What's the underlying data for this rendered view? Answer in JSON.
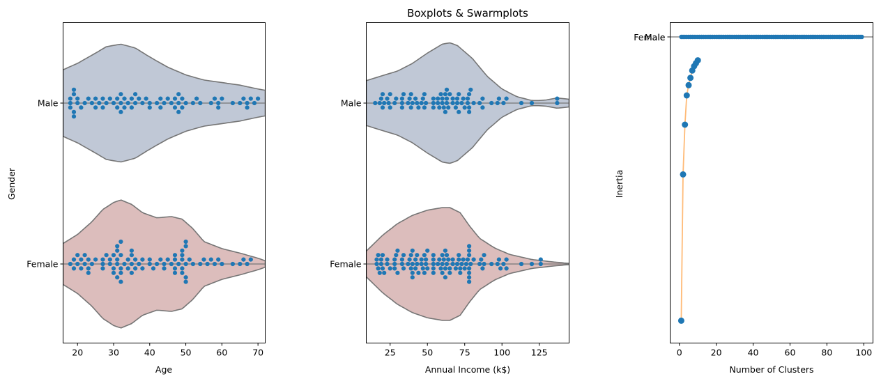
{
  "figure": {
    "title": "Boxplots & Swarmplots"
  },
  "colors": {
    "male_violin": "#c0c8d6",
    "female_violin": "#dcbdbc",
    "violin_edge": "#757575",
    "point": "#1f77b4",
    "elbow_line": "#ffbb78"
  },
  "chart_data": [
    {
      "type": "violin+swarm",
      "title": "",
      "xlabel": "Age",
      "ylabel": "Gender",
      "categories": [
        "Male",
        "Female"
      ],
      "xlim": [
        16,
        72
      ],
      "xticks": [
        20,
        30,
        40,
        50,
        60,
        70
      ],
      "violin_extent": {
        "Male": [
          16,
          72
        ],
        "Female": [
          16,
          72
        ]
      },
      "violin_density": {
        "Male": [
          [
            16,
            0.52
          ],
          [
            20,
            0.62
          ],
          [
            25,
            0.78
          ],
          [
            28,
            0.88
          ],
          [
            32,
            0.92
          ],
          [
            36,
            0.86
          ],
          [
            40,
            0.72
          ],
          [
            45,
            0.56
          ],
          [
            50,
            0.44
          ],
          [
            55,
            0.36
          ],
          [
            60,
            0.32
          ],
          [
            65,
            0.28
          ],
          [
            70,
            0.22
          ],
          [
            72,
            0.2
          ]
        ],
        "Female": [
          [
            16,
            0.32
          ],
          [
            20,
            0.46
          ],
          [
            24,
            0.66
          ],
          [
            27,
            0.85
          ],
          [
            30,
            0.96
          ],
          [
            32,
            1.0
          ],
          [
            35,
            0.93
          ],
          [
            38,
            0.8
          ],
          [
            42,
            0.72
          ],
          [
            46,
            0.74
          ],
          [
            49,
            0.7
          ],
          [
            52,
            0.55
          ],
          [
            55,
            0.35
          ],
          [
            60,
            0.24
          ],
          [
            65,
            0.17
          ],
          [
            70,
            0.09
          ],
          [
            72,
            0.05
          ]
        ]
      },
      "swarm": {
        "Male": [
          18,
          18,
          18,
          19,
          19,
          19,
          19,
          20,
          20,
          21,
          22,
          23,
          24,
          25,
          25,
          26,
          27,
          27,
          28,
          29,
          30,
          31,
          31,
          32,
          32,
          32,
          33,
          33,
          34,
          35,
          35,
          36,
          36,
          37,
          38,
          39,
          40,
          40,
          42,
          43,
          43,
          44,
          45,
          46,
          47,
          47,
          48,
          48,
          48,
          49,
          49,
          50,
          52,
          53,
          54,
          57,
          58,
          59,
          59,
          60,
          63,
          65,
          66,
          67,
          67,
          68,
          69,
          70
        ],
        "Female": [
          18,
          19,
          19,
          20,
          20,
          21,
          21,
          22,
          22,
          23,
          23,
          23,
          24,
          25,
          27,
          27,
          27,
          28,
          29,
          29,
          30,
          30,
          30,
          31,
          31,
          31,
          31,
          31,
          32,
          32,
          32,
          32,
          32,
          33,
          34,
          34,
          35,
          35,
          35,
          35,
          36,
          36,
          37,
          38,
          38,
          40,
          40,
          41,
          42,
          43,
          44,
          44,
          45,
          46,
          47,
          47,
          47,
          47,
          48,
          49,
          49,
          49,
          49,
          49,
          50,
          50,
          50,
          50,
          50,
          51,
          52,
          54,
          55,
          56,
          57,
          58,
          59,
          60,
          63,
          65,
          66,
          67,
          68
        ]
      }
    },
    {
      "type": "violin+swarm",
      "title": "Boxplots & Swarmplots",
      "xlabel": "Annual Income (k$)",
      "ylabel": "",
      "categories": [
        "Male",
        "Female"
      ],
      "xlim": [
        9,
        145
      ],
      "xticks": [
        25,
        50,
        75,
        100,
        125
      ],
      "violin_extent": {
        "Male": [
          9,
          145
        ],
        "Female": [
          9,
          145
        ]
      },
      "violin_density": {
        "Male": [
          [
            9,
            0.35
          ],
          [
            20,
            0.43
          ],
          [
            30,
            0.5
          ],
          [
            40,
            0.62
          ],
          [
            50,
            0.78
          ],
          [
            60,
            0.92
          ],
          [
            65,
            0.94
          ],
          [
            70,
            0.9
          ],
          [
            80,
            0.7
          ],
          [
            90,
            0.42
          ],
          [
            100,
            0.22
          ],
          [
            110,
            0.1
          ],
          [
            120,
            0.04
          ],
          [
            125,
            0.04
          ],
          [
            130,
            0.05
          ],
          [
            137,
            0.08
          ],
          [
            145,
            0.06
          ]
        ],
        "Female": [
          [
            9,
            0.2
          ],
          [
            20,
            0.45
          ],
          [
            30,
            0.63
          ],
          [
            40,
            0.76
          ],
          [
            50,
            0.84
          ],
          [
            60,
            0.88
          ],
          [
            65,
            0.88
          ],
          [
            72,
            0.8
          ],
          [
            78,
            0.6
          ],
          [
            85,
            0.4
          ],
          [
            95,
            0.25
          ],
          [
            105,
            0.15
          ],
          [
            120,
            0.07
          ],
          [
            135,
            0.03
          ],
          [
            145,
            0.01
          ]
        ]
      },
      "swarm": {
        "Male": [
          15,
          18,
          19,
          20,
          20,
          21,
          23,
          24,
          25,
          25,
          28,
          29,
          33,
          33,
          33,
          34,
          37,
          38,
          39,
          39,
          40,
          42,
          43,
          44,
          46,
          47,
          48,
          48,
          49,
          54,
          54,
          54,
          57,
          57,
          58,
          59,
          60,
          60,
          61,
          62,
          62,
          63,
          63,
          63,
          64,
          65,
          67,
          67,
          69,
          70,
          70,
          71,
          71,
          73,
          74,
          75,
          77,
          77,
          78,
          78,
          78,
          79,
          81,
          85,
          87,
          87,
          93,
          97,
          98,
          101,
          103,
          113,
          120,
          137,
          137
        ],
        "Female": [
          16,
          16,
          17,
          17,
          18,
          19,
          19,
          20,
          20,
          21,
          23,
          23,
          25,
          28,
          28,
          28,
          29,
          30,
          30,
          33,
          33,
          34,
          34,
          37,
          38,
          39,
          39,
          40,
          40,
          40,
          40,
          42,
          42,
          43,
          43,
          44,
          46,
          46,
          47,
          48,
          48,
          49,
          49,
          50,
          50,
          54,
          54,
          54,
          54,
          54,
          57,
          58,
          59,
          60,
          60,
          60,
          61,
          62,
          62,
          62,
          63,
          63,
          64,
          65,
          65,
          67,
          67,
          69,
          70,
          71,
          71,
          72,
          72,
          73,
          74,
          75,
          76,
          77,
          78,
          78,
          78,
          78,
          78,
          78,
          78,
          79,
          81,
          85,
          86,
          87,
          88,
          88,
          93,
          97,
          98,
          99,
          101,
          103,
          103,
          113,
          120,
          126,
          126
        ]
      }
    },
    {
      "type": "line",
      "title": "",
      "xlabel": "Number of Clusters",
      "ylabel": "Inertia",
      "xlim": [
        -5,
        105
      ],
      "xticks": [
        0,
        20,
        40,
        60,
        80,
        100
      ],
      "categorical_yticks": [
        "Female",
        "Male"
      ],
      "series": [
        {
          "kind": "line-with-markers",
          "x": [
            1,
            2,
            3,
            4,
            5,
            6,
            7,
            8,
            9,
            10
          ],
          "y": [
            0.03,
            0.53,
            0.7,
            0.8,
            0.835,
            0.86,
            0.885,
            0.9,
            0.91,
            0.92
          ]
        },
        {
          "kind": "scatter",
          "x": [
            1,
            2,
            3,
            4,
            5,
            6,
            7,
            8,
            9,
            10,
            11,
            12,
            13,
            14,
            15,
            16,
            17,
            18,
            19,
            20,
            21,
            22,
            23,
            24,
            25,
            26,
            27,
            28,
            29,
            30,
            31,
            32,
            33,
            34,
            35,
            36,
            37,
            38,
            39,
            40,
            41,
            42,
            43,
            44,
            45,
            46,
            47,
            48,
            49,
            50,
            51,
            52,
            53,
            54,
            55,
            56,
            57,
            58,
            59,
            60,
            61,
            62,
            63,
            64,
            65,
            66,
            67,
            68,
            69,
            70,
            71,
            72,
            73,
            74,
            75,
            76,
            77,
            78,
            79,
            80,
            81,
            82,
            83,
            84,
            85,
            86,
            87,
            88,
            89,
            90,
            91,
            92,
            93,
            94,
            95,
            96,
            97,
            98,
            99
          ],
          "y_category": "Female/Male"
        }
      ],
      "ylim": [
        0,
        1
      ]
    }
  ]
}
